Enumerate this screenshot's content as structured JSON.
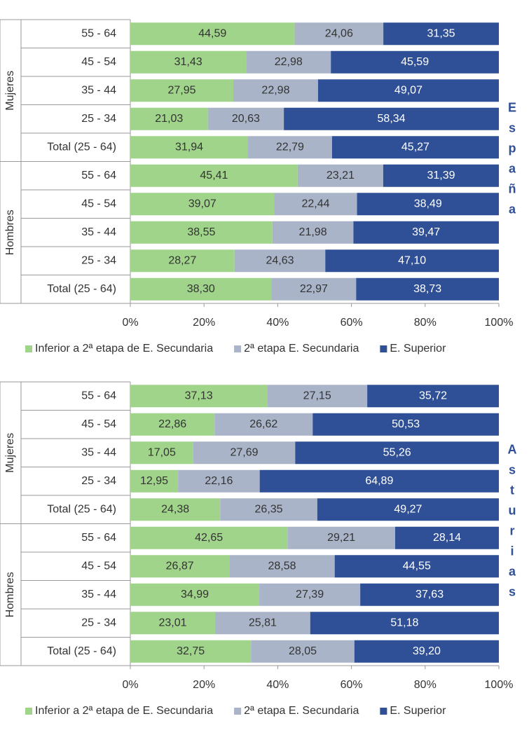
{
  "chart_data": [
    {
      "type": "stacked-bar-horizontal",
      "side_label": "España",
      "groups": [
        "Mujeres",
        "Hombres"
      ],
      "categories": [
        "55 - 64",
        "45 - 54",
        "35 - 44",
        "25 - 34",
        "Total (25 - 64)",
        "55 - 64",
        "45 - 54",
        "35 - 44",
        "25 - 34",
        "Total (25 - 64)"
      ],
      "xlim": [
        0,
        100
      ],
      "xticks": [
        {
          "value": 0,
          "label": "0%"
        },
        {
          "value": 20,
          "label": "20%"
        },
        {
          "value": 40,
          "label": "40%"
        },
        {
          "value": 60,
          "label": "60%"
        },
        {
          "value": 80,
          "label": "80%"
        },
        {
          "value": 100,
          "label": "100%"
        }
      ],
      "series": [
        {
          "name": "Inferior a 2ª etapa de E. Secundaria",
          "color": "#a0d48a",
          "values": [
            44.59,
            31.43,
            27.95,
            21.03,
            31.94,
            45.41,
            39.07,
            38.55,
            28.27,
            38.3
          ],
          "value_labels": [
            "44,59",
            "31,43",
            "27,95",
            "21,03",
            "31,94",
            "45,41",
            "39,07",
            "38,55",
            "28,27",
            "38,30"
          ]
        },
        {
          "name": "2ª etapa E. Secundaria",
          "color": "#aab4c8",
          "values": [
            24.06,
            22.98,
            22.98,
            20.63,
            22.79,
            23.21,
            22.44,
            21.98,
            24.63,
            22.97
          ],
          "value_labels": [
            "24,06",
            "22,98",
            "22,98",
            "20,63",
            "22,79",
            "23,21",
            "22,44",
            "21,98",
            "24,63",
            "22,97"
          ]
        },
        {
          "name": "E. Superior",
          "color": "#2f5096",
          "values": [
            31.35,
            45.59,
            49.07,
            58.34,
            45.27,
            31.39,
            38.49,
            39.47,
            47.1,
            38.73
          ],
          "value_labels": [
            "31,35",
            "45,59",
            "49,07",
            "58,34",
            "45,27",
            "31,39",
            "38,49",
            "39,47",
            "47,10",
            "38,73"
          ]
        }
      ]
    },
    {
      "type": "stacked-bar-horizontal",
      "side_label": "Asturias",
      "groups": [
        "Mujeres",
        "Hombres"
      ],
      "categories": [
        "55 - 64",
        "45 - 54",
        "35 - 44",
        "25 - 34",
        "Total (25 - 64)",
        "55 - 64",
        "45 - 54",
        "35 - 44",
        "25 - 34",
        "Total (25 - 64)"
      ],
      "xlim": [
        0,
        100
      ],
      "xticks": [
        {
          "value": 0,
          "label": "0%"
        },
        {
          "value": 20,
          "label": "20%"
        },
        {
          "value": 40,
          "label": "40%"
        },
        {
          "value": 60,
          "label": "60%"
        },
        {
          "value": 80,
          "label": "80%"
        },
        {
          "value": 100,
          "label": "100%"
        }
      ],
      "series": [
        {
          "name": "Inferior a 2ª etapa de E. Secundaria",
          "color": "#a0d48a",
          "values": [
            37.13,
            22.86,
            17.05,
            12.95,
            24.38,
            42.65,
            26.87,
            34.99,
            23.01,
            32.75
          ],
          "value_labels": [
            "37,13",
            "22,86",
            "17,05",
            "12,95",
            "24,38",
            "42,65",
            "26,87",
            "34,99",
            "23,01",
            "32,75"
          ]
        },
        {
          "name": "2ª etapa E. Secundaria",
          "color": "#aab4c8",
          "values": [
            27.15,
            26.62,
            27.69,
            22.16,
            26.35,
            29.21,
            28.58,
            27.39,
            25.81,
            28.05
          ],
          "value_labels": [
            "27,15",
            "26,62",
            "27,69",
            "22,16",
            "26,35",
            "29,21",
            "28,58",
            "27,39",
            "25,81",
            "28,05"
          ]
        },
        {
          "name": "E. Superior",
          "color": "#2f5096",
          "values": [
            35.72,
            50.53,
            55.26,
            64.89,
            49.27,
            28.14,
            44.55,
            37.63,
            51.18,
            39.2
          ],
          "value_labels": [
            "35,72",
            "50,53",
            "55,26",
            "64,89",
            "49,27",
            "28,14",
            "44,55",
            "37,63",
            "51,18",
            "39,20"
          ]
        }
      ]
    }
  ]
}
